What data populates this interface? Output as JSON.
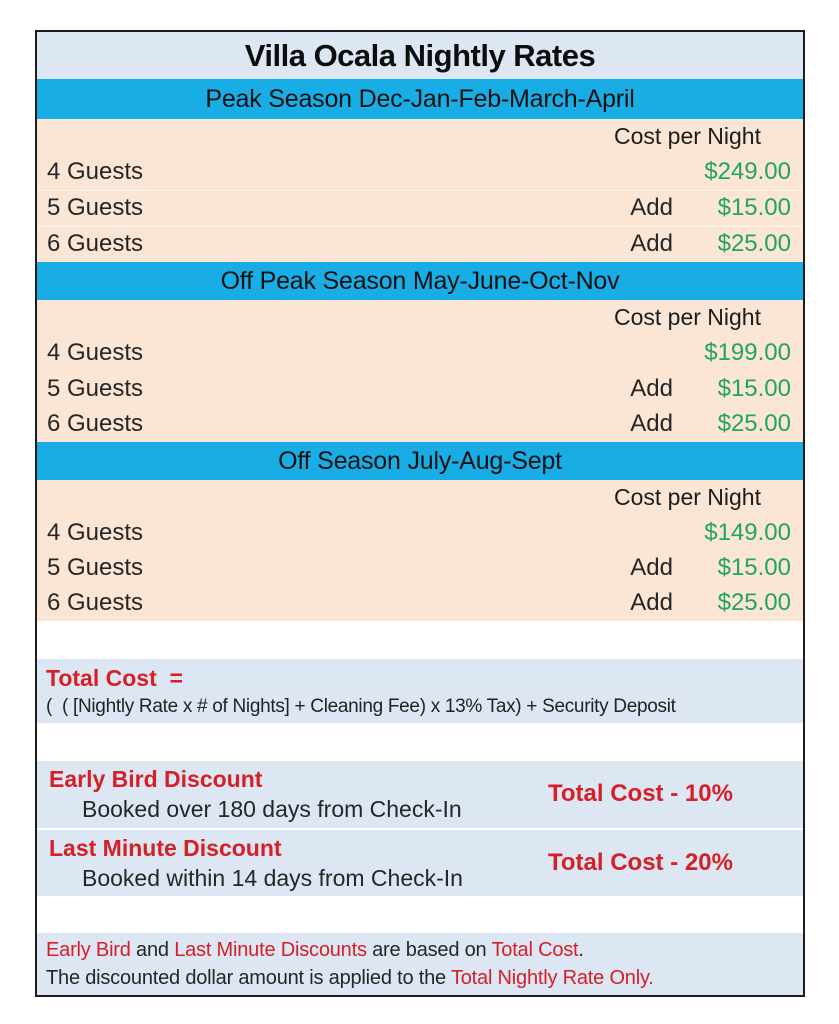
{
  "title": "Villa Ocala Nightly Rates",
  "colors": {
    "season_header_bg": "#18ade4",
    "rates_bg": "#fbe6d5",
    "panel_bg": "#dce7f3",
    "price_green": "#21a55b",
    "accent_red": "#d42026"
  },
  "cost_column_label": "Cost per Night",
  "sections": [
    {
      "header": "Peak Season Dec-Jan-Feb-March-April",
      "rows": [
        {
          "guests": "4 Guests",
          "add": "",
          "price": "$249.00"
        },
        {
          "guests": "5 Guests",
          "add": "Add",
          "price": "$15.00"
        },
        {
          "guests": "6 Guests",
          "add": "Add",
          "price": "$25.00"
        }
      ]
    },
    {
      "header": "Off Peak Season May-June-Oct-Nov",
      "rows": [
        {
          "guests": "4 Guests",
          "add": "",
          "price": "$199.00"
        },
        {
          "guests": "5 Guests",
          "add": "Add",
          "price": "$15.00"
        },
        {
          "guests": "6 Guests",
          "add": "Add",
          "price": "$25.00"
        }
      ]
    },
    {
      "header": "Off Season July-Aug-Sept",
      "rows": [
        {
          "guests": "4 Guests",
          "add": "",
          "price": "$149.00"
        },
        {
          "guests": "5 Guests",
          "add": "Add",
          "price": "$15.00"
        },
        {
          "guests": "6 Guests",
          "add": "Add",
          "price": "$25.00"
        }
      ]
    }
  ],
  "total_cost": {
    "label": "Total Cost  =",
    "formula": "(  ( [Nightly Rate x # of Nights] + Cleaning Fee) x 13% Tax) + Security Deposit"
  },
  "discounts": [
    {
      "name": "Early Bird Discount",
      "condition": "Booked over 180 days from Check-In",
      "value": "Total Cost - 10%"
    },
    {
      "name": "Last Minute Discount",
      "condition": "Booked within 14 days from Check-In",
      "value": "Total Cost - 20%"
    }
  ],
  "notes": {
    "line1": [
      {
        "text": "Early Bird"
      },
      {
        "text": " and "
      },
      {
        "text": "Last Minute Discounts"
      },
      {
        "text": " are based on "
      },
      {
        "text": "Total Cost"
      },
      {
        "text": "."
      }
    ],
    "line2": [
      {
        "text": "The discounted dollar amount is applied to the "
      },
      {
        "text": "Total Nightly Rate Only"
      },
      {
        "text": "."
      }
    ]
  }
}
